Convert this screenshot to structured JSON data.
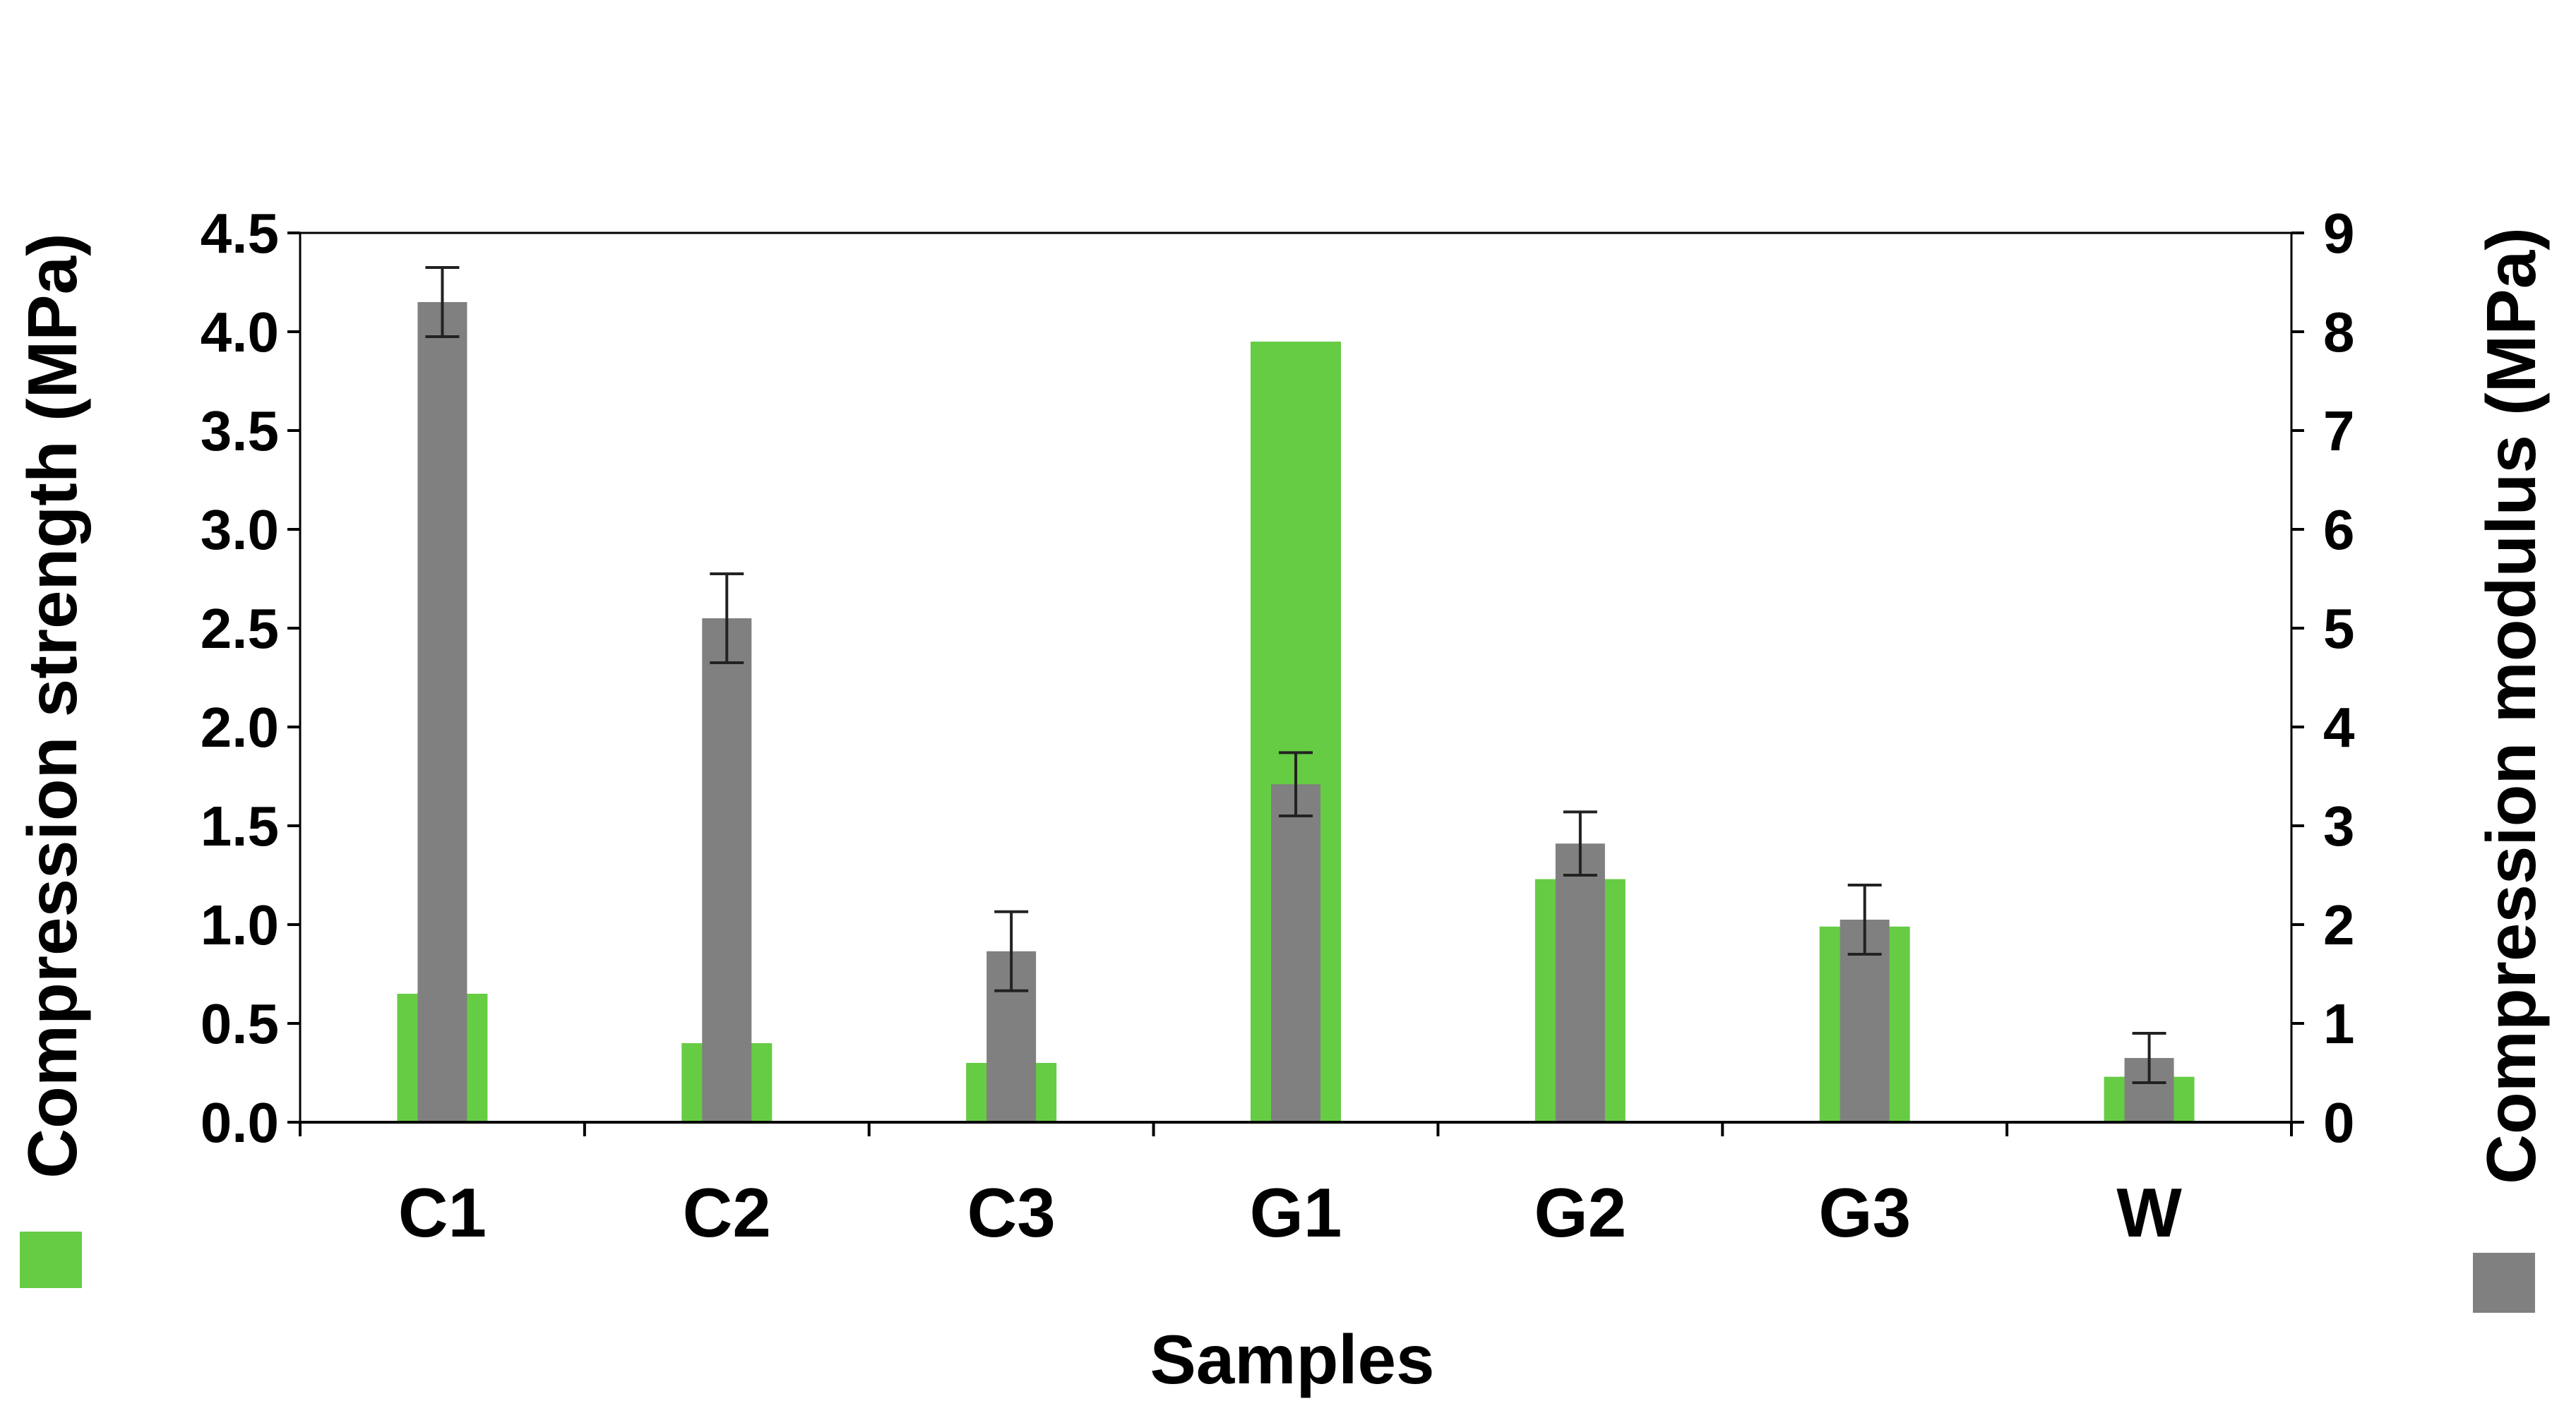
{
  "chart_data": {
    "type": "bar",
    "xlabel": "Samples",
    "categories": [
      "C1",
      "C2",
      "C3",
      "G1",
      "G2",
      "G3",
      "W"
    ],
    "left_axis": {
      "label": "Compression strength (MPa)",
      "ylim": [
        0,
        4.5
      ],
      "ticks": [
        "0.0",
        "0.5",
        "1.0",
        "1.5",
        "2.0",
        "2.5",
        "3.0",
        "3.5",
        "4.0",
        "4.5"
      ]
    },
    "right_axis": {
      "label": "Compression modulus (MPa)",
      "ylim": [
        0,
        9
      ],
      "ticks": [
        "0",
        "1",
        "2",
        "3",
        "4",
        "5",
        "6",
        "7",
        "8",
        "9"
      ]
    },
    "series": [
      {
        "axis": "left",
        "color": "#66cc44",
        "values": [
          0.65,
          0.4,
          0.3,
          3.95,
          1.23,
          0.99,
          0.23
        ]
      },
      {
        "axis": "right",
        "color": "#808080",
        "values": [
          8.3,
          5.1,
          1.73,
          3.42,
          2.82,
          2.05,
          0.65
        ],
        "errors": [
          0.35,
          0.45,
          0.4,
          0.32,
          0.32,
          0.35,
          0.25
        ]
      }
    ],
    "legend_swatches": {
      "left": "#66cc44",
      "right": "#808080"
    },
    "grid": false
  }
}
